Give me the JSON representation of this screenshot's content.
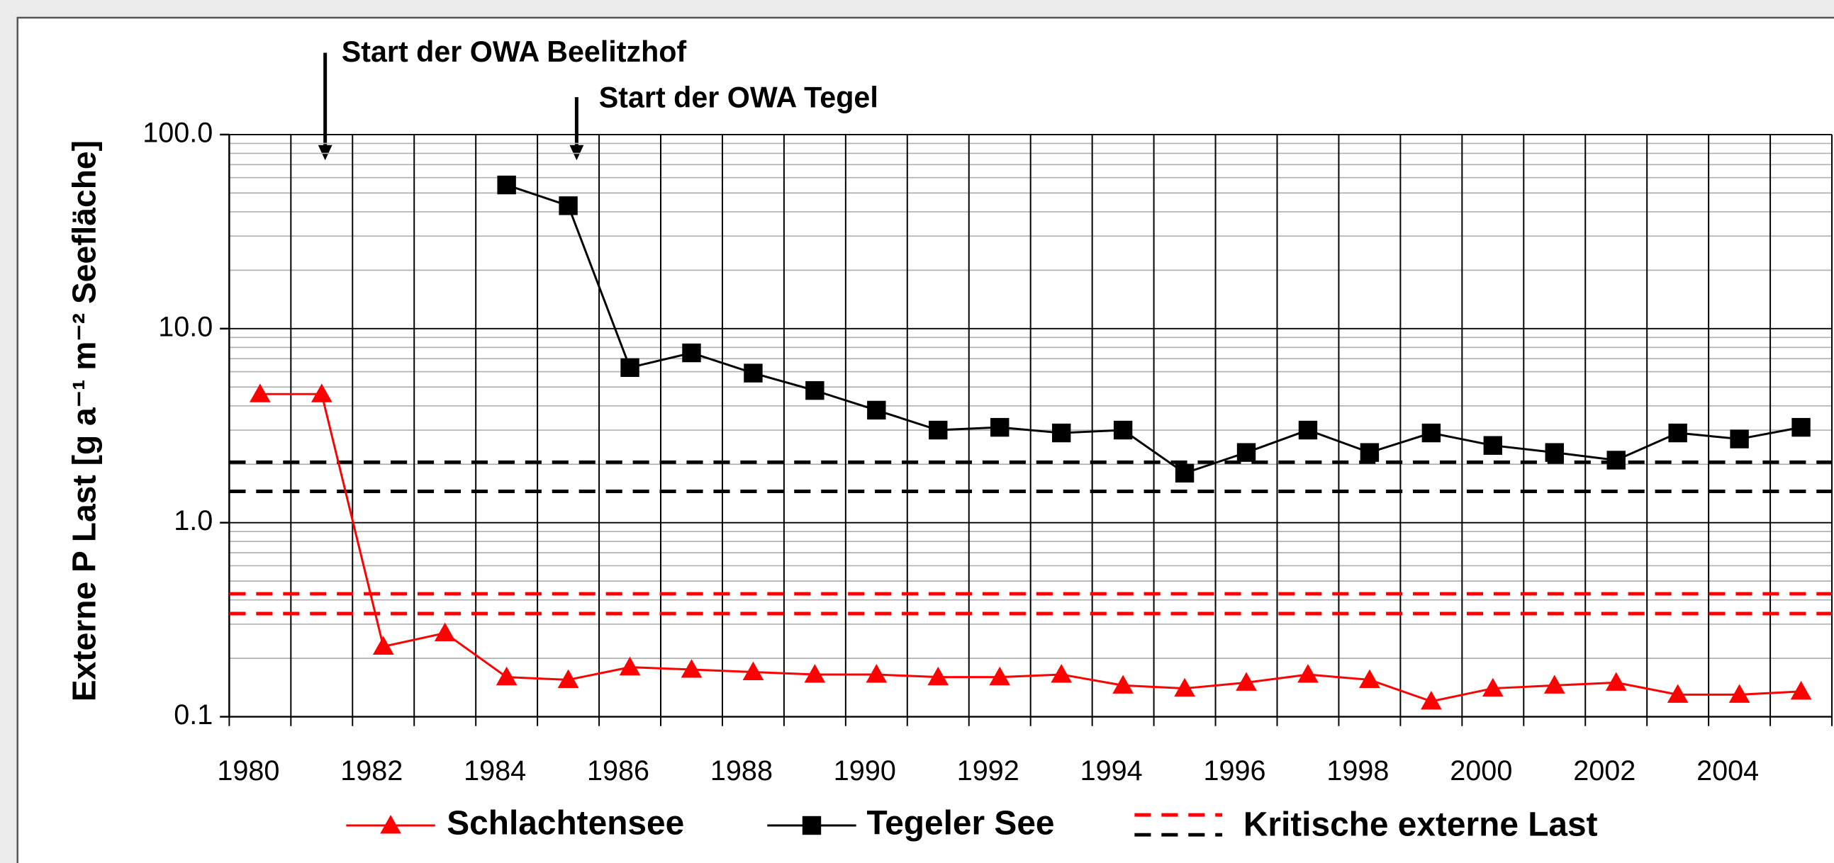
{
  "chart_data": {
    "type": "line",
    "ylabel": "Externe P Last [g a⁻¹ m⁻² Seefläche]",
    "categories": [
      "1980",
      null,
      "1982",
      null,
      "1984",
      null,
      "1986",
      null,
      "1988",
      null,
      "1990",
      null,
      "1992",
      null,
      "1994",
      null,
      "1996",
      null,
      "1998",
      null,
      "2000",
      null,
      "2002",
      null,
      "2004",
      null
    ],
    "series": [
      {
        "name": "Schlachtensee",
        "color": "#ff0000",
        "marker": "triangle",
        "values": [
          4.6,
          4.6,
          0.23,
          0.27,
          0.16,
          0.155,
          0.18,
          0.175,
          0.17,
          0.165,
          0.165,
          0.16,
          0.16,
          0.165,
          0.145,
          0.14,
          0.15,
          0.165,
          0.155,
          0.12,
          0.14,
          0.145,
          0.15,
          0.13,
          0.13,
          0.135
        ]
      },
      {
        "name": "Tegeler See",
        "color": "#000000",
        "marker": "square",
        "values": [
          null,
          null,
          null,
          null,
          55,
          43,
          6.3,
          7.5,
          5.9,
          4.8,
          3.8,
          3.0,
          3.1,
          2.9,
          3.0,
          1.8,
          2.3,
          3.0,
          2.3,
          2.9,
          2.5,
          2.3,
          2.1,
          2.9,
          2.7,
          3.1
        ]
      }
    ],
    "critical_load": {
      "name": "Kritische externe Last",
      "lines": [
        {
          "color": "#ff0000",
          "values": [
            0.43,
            0.34
          ]
        },
        {
          "color": "#000000",
          "values": [
            2.05,
            1.45
          ]
        }
      ]
    },
    "annotations": [
      "Start der OWA Beelitzhof",
      "Start der OWA Tegel"
    ],
    "log_scale": true,
    "grid": true,
    "ylim": [
      0.1,
      100
    ],
    "yticks": [
      0.1,
      {
        "value": 1,
        "label": "1.0"
      },
      {
        "value": 10,
        "label": "10.0"
      },
      {
        "value": 100,
        "label": "100.0"
      }
    ]
  }
}
